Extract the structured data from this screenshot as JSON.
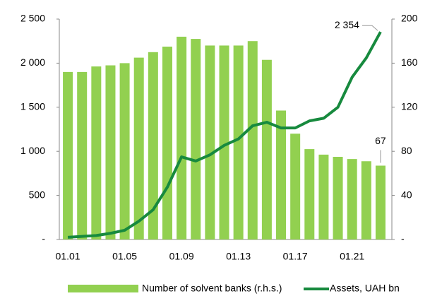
{
  "chart_data": {
    "type": "bar-line",
    "categories": [
      "01.01",
      null,
      null,
      null,
      "01.05",
      null,
      null,
      null,
      "01.09",
      null,
      null,
      null,
      "01.13",
      null,
      null,
      null,
      "01.17",
      null,
      null,
      null,
      "01.21",
      null,
      null
    ],
    "series": [
      {
        "name": "Number of solvent banks (r.h.s.)",
        "type": "bar",
        "axis": "y2",
        "color": "#92d050",
        "values": [
          152,
          152,
          157,
          158,
          160,
          165,
          170,
          175,
          184,
          182,
          176,
          176,
          176,
          180,
          163,
          117,
          96,
          82,
          77,
          75,
          73,
          71,
          67
        ]
      },
      {
        "name": "Assets, UAH bn",
        "type": "line",
        "axis": "y",
        "color": "#178a3e",
        "values": [
          25,
          35,
          45,
          70,
          105,
          208,
          337,
          593,
          937,
          890,
          960,
          1067,
          1140,
          1290,
          1330,
          1265,
          1265,
          1345,
          1375,
          1500,
          1840,
          2060,
          2354
        ],
        "value_labels": [
          null,
          null,
          null,
          null,
          null,
          null,
          null,
          null,
          null,
          null,
          null,
          null,
          null,
          null,
          null,
          null,
          null,
          null,
          null,
          null,
          null,
          null,
          "2 354"
        ]
      }
    ],
    "ylim": [
      0,
      2500
    ],
    "yticks": [
      {
        "value": 0,
        "label": "-"
      },
      500,
      {
        "value": 1000,
        "label": "1 000"
      },
      {
        "value": 1500,
        "label": "1 500"
      },
      {
        "value": 2000,
        "label": "2 000"
      },
      {
        "value": 2500,
        "label": "2 500"
      }
    ],
    "y2lim": [
      0,
      200
    ],
    "y2ticks": [
      {
        "value": 0,
        "label": "-"
      },
      40,
      80,
      120,
      160,
      200
    ],
    "legend": "bottom"
  }
}
